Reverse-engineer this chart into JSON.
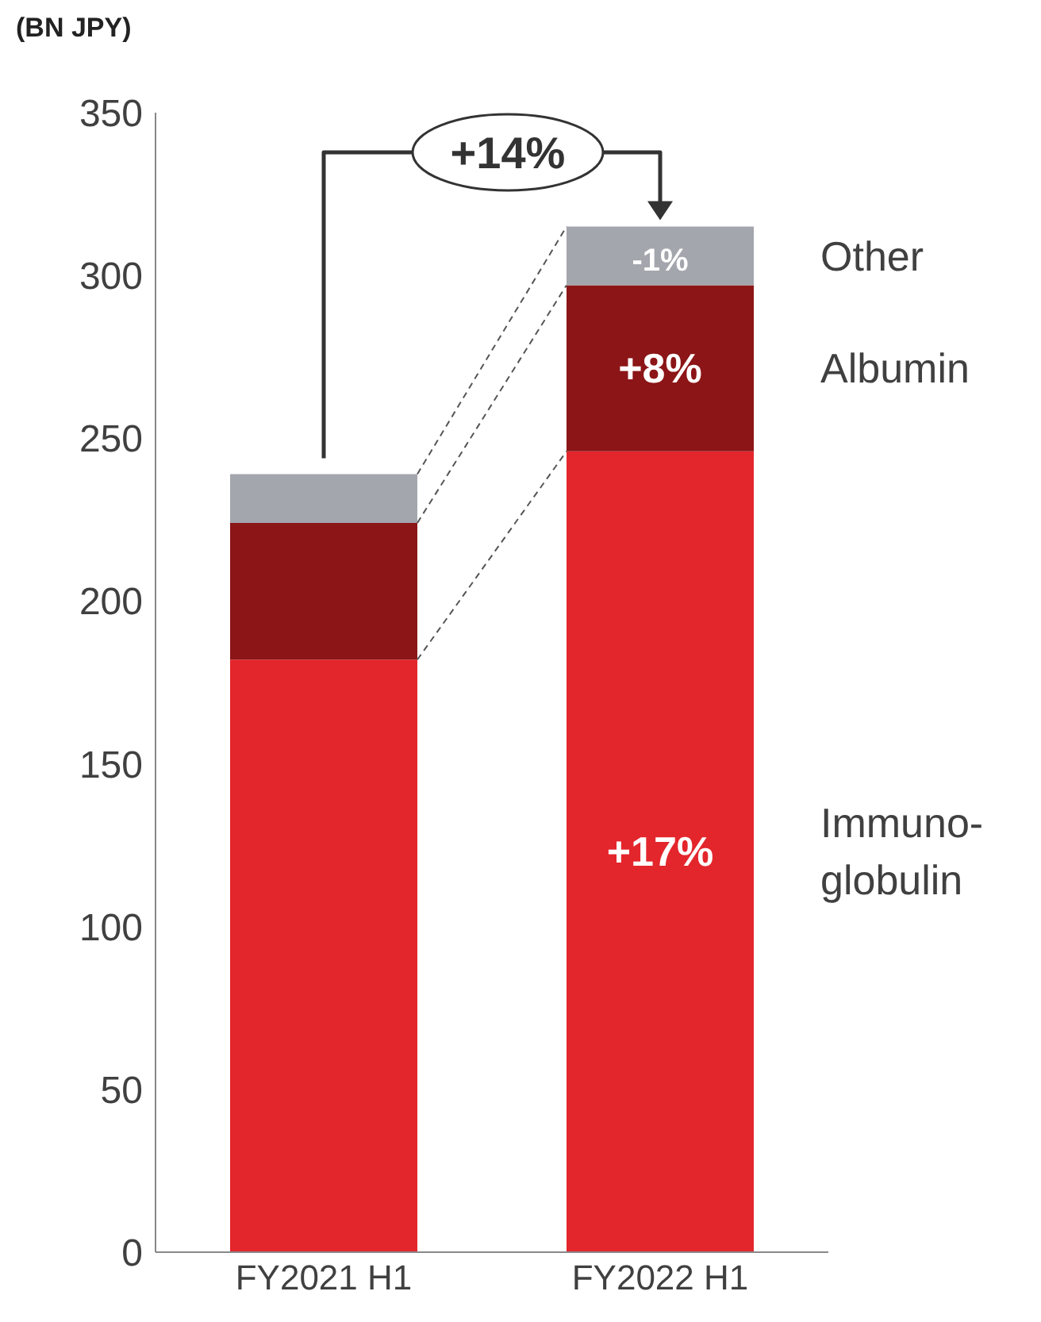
{
  "chart_data": {
    "type": "bar",
    "ylabel": "(BN JPY)",
    "stacked": true,
    "categories": [
      "FY2021 H1",
      "FY2022 H1"
    ],
    "series": [
      {
        "name": "Immuno-globulin",
        "color": "#e3262c",
        "values": [
          182,
          246
        ]
      },
      {
        "name": "Albumin",
        "color": "#8b1517",
        "values": [
          42,
          51
        ]
      },
      {
        "name": "Other",
        "color": "#a4a6ad",
        "values": [
          15,
          18
        ]
      }
    ],
    "annotations": [
      "+14%",
      "+17%",
      "+8%",
      "-1%"
    ],
    "ylim": [
      0,
      350
    ],
    "yticks": [
      0,
      50,
      100,
      150,
      200,
      250,
      300,
      350
    ]
  }
}
